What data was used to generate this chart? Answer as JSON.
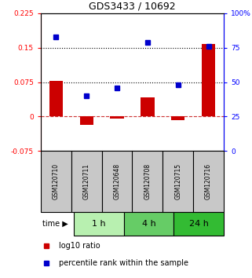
{
  "title": "GDS3433 / 10692",
  "samples": [
    "GSM120710",
    "GSM120711",
    "GSM120648",
    "GSM120708",
    "GSM120715",
    "GSM120716"
  ],
  "log10_ratio": [
    0.078,
    -0.018,
    -0.005,
    0.042,
    -0.008,
    0.158
  ],
  "percentile_rank": [
    83,
    40,
    46,
    79,
    48,
    76
  ],
  "time_groups": [
    {
      "label": "1 h",
      "start": 0,
      "end": 2,
      "color": "#b8f0b0"
    },
    {
      "label": "4 h",
      "start": 2,
      "end": 4,
      "color": "#66cc66"
    },
    {
      "label": "24 h",
      "start": 4,
      "end": 6,
      "color": "#33bb33"
    }
  ],
  "ylim_left": [
    -0.075,
    0.225
  ],
  "ylim_right": [
    0,
    100
  ],
  "yticks_left": [
    -0.075,
    0,
    0.075,
    0.15,
    0.225
  ],
  "yticks_right": [
    0,
    25,
    50,
    75,
    100
  ],
  "hlines": [
    0.15,
    0.075
  ],
  "bar_color": "#cc0000",
  "dot_color": "#0000cc",
  "zero_line_color": "#cc3333",
  "background_color": "#ffffff",
  "sample_box_color": "#c8c8c8",
  "figsize": [
    3.21,
    3.54
  ],
  "dpi": 100
}
